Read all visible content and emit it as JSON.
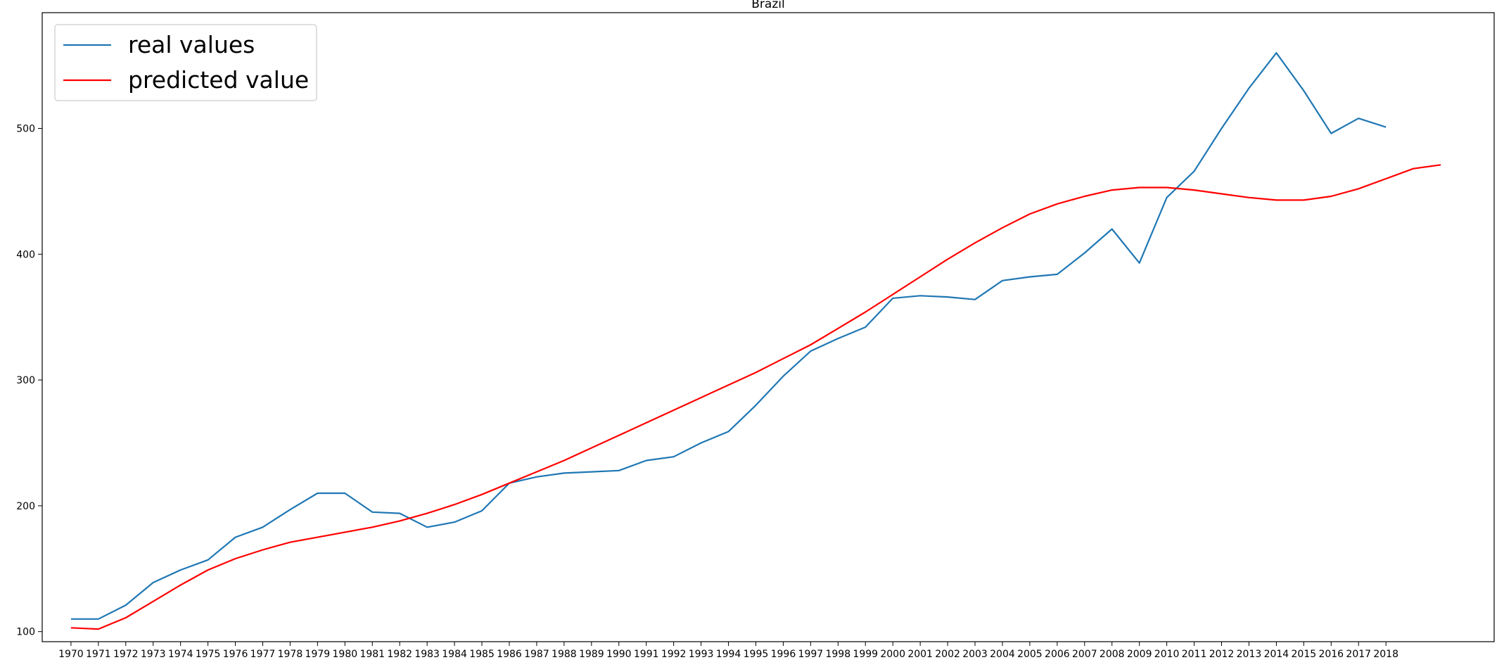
{
  "chart_data": {
    "type": "line",
    "title": "Brazil",
    "xlabel": "",
    "ylabel": "",
    "x_tick_labels": [
      "1970",
      "1971",
      "1972",
      "1973",
      "1974",
      "1975",
      "1976",
      "1977",
      "1978",
      "1979",
      "1980",
      "1981",
      "1982",
      "1983",
      "1984",
      "1985",
      "1986",
      "1987",
      "1988",
      "1989",
      "1990",
      "1991",
      "1992",
      "1993",
      "1994",
      "1995",
      "1996",
      "1997",
      "1998",
      "1999",
      "2000",
      "2001",
      "2002",
      "2003",
      "2004",
      "2005",
      "2006",
      "2007",
      "2008",
      "2009",
      "2010",
      "2011",
      "2012",
      "2013",
      "2014",
      "2015",
      "2016",
      "2017",
      "2018"
    ],
    "y_ticks": [
      100,
      200,
      300,
      400,
      500
    ],
    "xlim": [
      1968.95,
      2021.95
    ],
    "ylim": [
      92,
      592
    ],
    "grid": false,
    "legend_position": "top-left",
    "series": [
      {
        "name": "real values",
        "color": "#1f77b4",
        "x": [
          1970,
          1971,
          1972,
          1973,
          1974,
          1975,
          1976,
          1977,
          1978,
          1979,
          1980,
          1981,
          1982,
          1983,
          1984,
          1985,
          1986,
          1987,
          1988,
          1989,
          1990,
          1991,
          1992,
          1993,
          1994,
          1995,
          1996,
          1997,
          1998,
          1999,
          2000,
          2001,
          2002,
          2003,
          2004,
          2005,
          2006,
          2007,
          2008,
          2009,
          2010,
          2011,
          2012,
          2013,
          2014,
          2015,
          2016,
          2017,
          2018
        ],
        "values": [
          110,
          110,
          121,
          139,
          149,
          157,
          175,
          183,
          197,
          210,
          210,
          195,
          194,
          183,
          187,
          196,
          218,
          223,
          226,
          227,
          228,
          236,
          239,
          250,
          259,
          280,
          303,
          323,
          333,
          342,
          365,
          367,
          366,
          364,
          379,
          382,
          384,
          401,
          420,
          393,
          445,
          466,
          500,
          532,
          560,
          530,
          496,
          508,
          501
        ]
      },
      {
        "name": "predicted value",
        "color": "#ff0000",
        "x": [
          1970,
          1971,
          1972,
          1973,
          1974,
          1975,
          1976,
          1977,
          1978,
          1979,
          1980,
          1981,
          1982,
          1983,
          1984,
          1985,
          1986,
          1987,
          1988,
          1989,
          1990,
          1991,
          1992,
          1993,
          1994,
          1995,
          1996,
          1997,
          1998,
          1999,
          2000,
          2001,
          2002,
          2003,
          2004,
          2005,
          2006,
          2007,
          2008,
          2009,
          2010,
          2011,
          2012,
          2013,
          2014,
          2015,
          2016,
          2017,
          2018,
          2019,
          2020
        ],
        "values": [
          103,
          102,
          111,
          124,
          137,
          149,
          158,
          165,
          171,
          175,
          179,
          183,
          188,
          194,
          201,
          209,
          218,
          227,
          236,
          246,
          256,
          266,
          276,
          286,
          296,
          306,
          317,
          328,
          341,
          354,
          368,
          382,
          396,
          409,
          421,
          432,
          440,
          446,
          451,
          453,
          453,
          451,
          448,
          445,
          443,
          443,
          446,
          452,
          460,
          468,
          471
        ]
      }
    ]
  }
}
